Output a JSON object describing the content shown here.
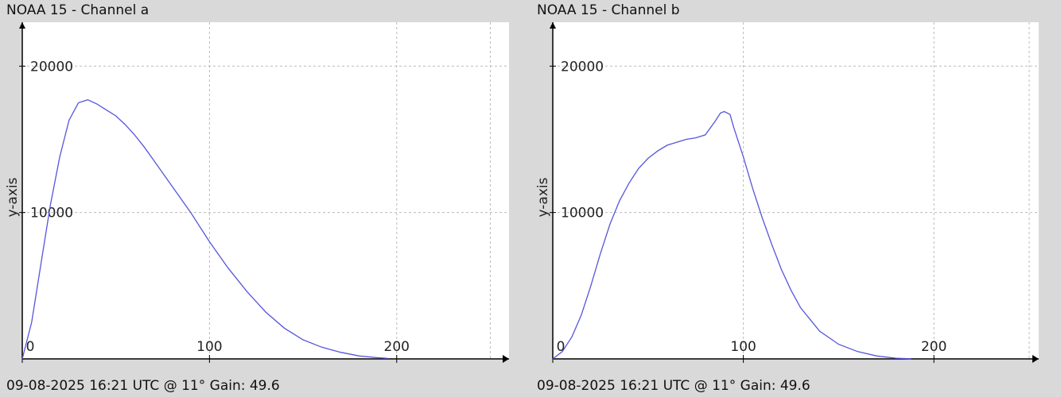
{
  "chart_data": [
    {
      "type": "line",
      "title": "NOAA 15 - Channel a",
      "footer": "09-08-2025 16:21 UTC @ 11° Gain: 49.6",
      "ylabel": "y-axis",
      "xlabel": "",
      "xlim": [
        0,
        260
      ],
      "ylim": [
        0,
        23000
      ],
      "xticks": [
        "0",
        "100",
        "200"
      ],
      "yticks": [
        "10000",
        "20000"
      ],
      "grid": true,
      "color": "#5555dd",
      "series": [
        {
          "x": [
            0,
            5,
            10,
            15,
            20,
            25,
            30,
            35,
            40,
            45,
            50,
            55,
            60,
            65,
            70,
            80,
            90,
            100,
            110,
            120,
            130,
            140,
            150,
            160,
            170,
            180,
            190,
            195
          ],
          "y": [
            0,
            2500,
            6500,
            10500,
            13800,
            16300,
            17500,
            17700,
            17400,
            17000,
            16600,
            16000,
            15300,
            14500,
            13600,
            11800,
            10000,
            8000,
            6200,
            4600,
            3200,
            2100,
            1300,
            800,
            450,
            200,
            80,
            40
          ]
        }
      ]
    },
    {
      "type": "line",
      "title": "NOAA 15 - Channel b",
      "footer": "09-08-2025 16:21 UTC @ 11° Gain: 49.6",
      "ylabel": "y-axis",
      "xlabel": "",
      "xlim": [
        0,
        255
      ],
      "ylim": [
        0,
        23000
      ],
      "xticks": [
        "0",
        "100",
        "200"
      ],
      "yticks": [
        "10000",
        "20000"
      ],
      "grid": true,
      "color": "#5555dd",
      "series": [
        {
          "x": [
            0,
            5,
            10,
            15,
            20,
            25,
            30,
            35,
            40,
            45,
            50,
            55,
            60,
            65,
            70,
            75,
            80,
            85,
            88,
            90,
            93,
            95,
            100,
            105,
            110,
            115,
            120,
            125,
            130,
            140,
            150,
            160,
            170,
            180,
            188
          ],
          "y": [
            0,
            500,
            1500,
            3000,
            5000,
            7200,
            9200,
            10800,
            12000,
            13000,
            13700,
            14200,
            14600,
            14800,
            15000,
            15100,
            15300,
            16200,
            16800,
            16900,
            16700,
            15800,
            13800,
            11600,
            9600,
            7800,
            6100,
            4700,
            3500,
            1900,
            1000,
            500,
            200,
            50,
            10
          ]
        }
      ]
    }
  ]
}
